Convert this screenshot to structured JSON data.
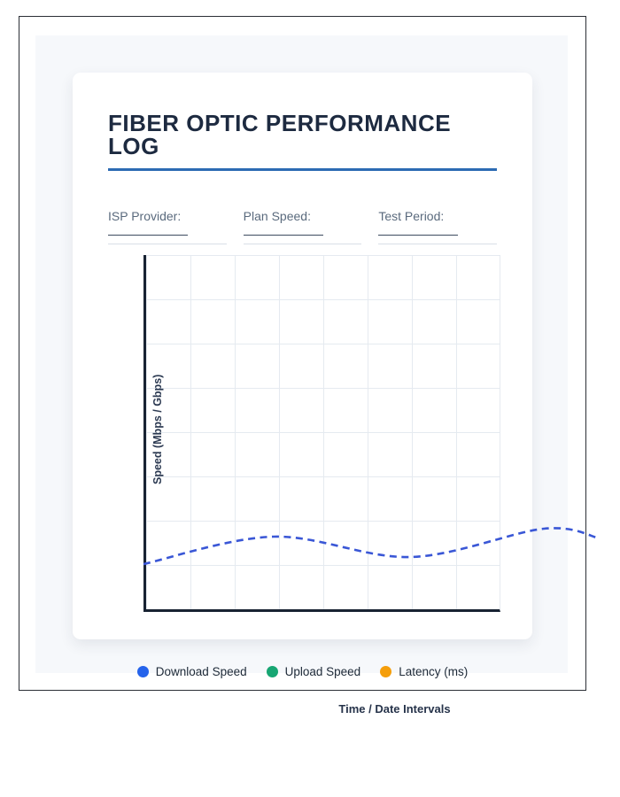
{
  "page": {
    "title": "FIBER OPTIC PERFORMANCE LOG"
  },
  "form": {
    "fields": [
      {
        "id": "isp-provider",
        "label": "ISP Provider:",
        "value": ""
      },
      {
        "id": "plan-speed",
        "label": "Plan Speed:",
        "value": ""
      },
      {
        "id": "test-period",
        "label": "Test Period:",
        "value": ""
      }
    ]
  },
  "chart_data": {
    "type": "line",
    "title": "",
    "xlabel": "Time / Date Intervals",
    "ylabel": "Speed (Mbps / Gbps)",
    "x_ticks": [],
    "y_ticks": [],
    "grid": true,
    "grid_cols": 8,
    "grid_rows": 8,
    "legend_position": "bottom",
    "legend": [
      {
        "label": "Download Speed",
        "color": "#2563eb"
      },
      {
        "label": "Upload Speed",
        "color": "#17a673"
      },
      {
        "label": "Latency (ms)",
        "color": "#f59e0b"
      }
    ],
    "series": [
      {
        "name": "Download Speed",
        "color": "#3a57d6",
        "line_style": "dashed",
        "points_frac": [
          [
            0.0,
            0.1275
          ],
          [
            0.365,
            0.205
          ],
          [
            0.749,
            0.1475
          ],
          [
            1.122,
            0.2275
          ],
          [
            1.278,
            0.2
          ]
        ]
      }
    ]
  },
  "colors": {
    "title_text": "#1d2a40",
    "title_underline": "#2c6bb3",
    "axis": "#182232",
    "grid_line": "#e5eaf0",
    "panel_background": "#f6f8fb",
    "field_label": "#5a6a7d",
    "dashed_line": "#3a57d6"
  }
}
